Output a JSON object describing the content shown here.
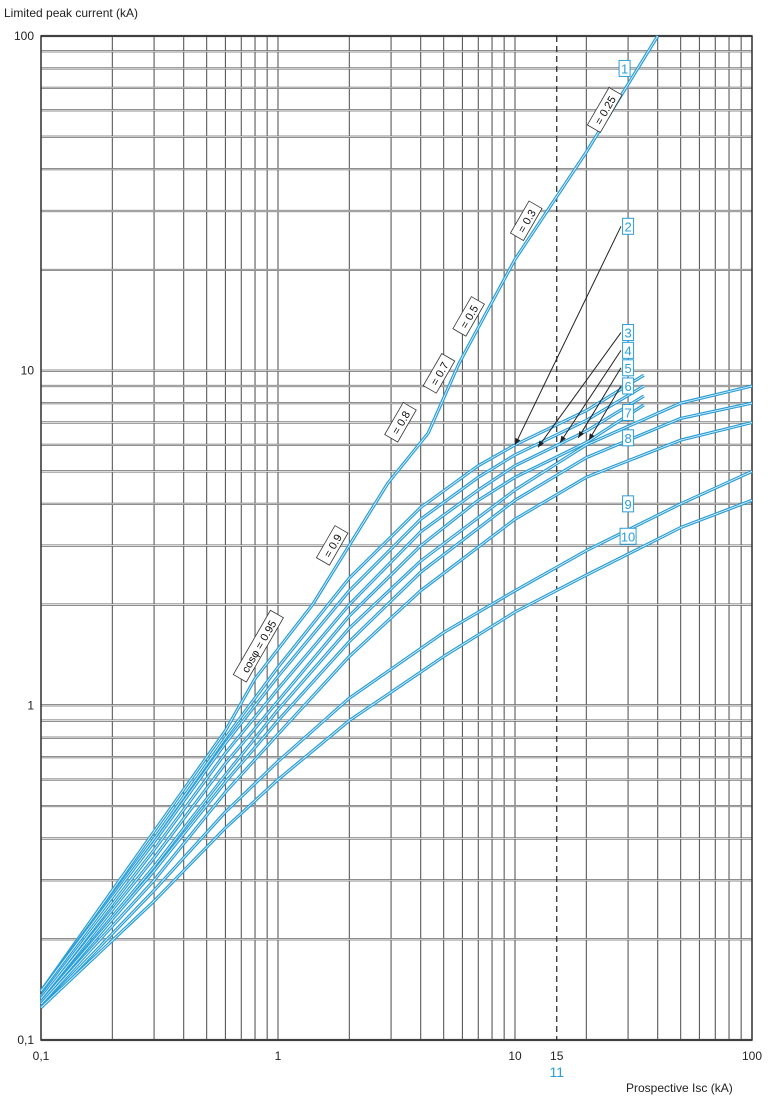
{
  "chart_data": {
    "type": "line",
    "xlabel": "Prospective Isc (kA)",
    "ylabel": "Limited peak current (kA)",
    "xscale": "log",
    "yscale": "log",
    "xlim": [
      0.1,
      100
    ],
    "ylim": [
      0.1,
      100
    ],
    "grid": true,
    "x_ticks": [
      {
        "value": 0.1,
        "label": "0,1"
      },
      {
        "value": 1,
        "label": "1"
      },
      {
        "value": 10,
        "label": "10"
      },
      {
        "value": 15,
        "label": "15"
      },
      {
        "value": 100,
        "label": "100"
      }
    ],
    "y_ticks": [
      {
        "value": 0.1,
        "label": "0,1"
      },
      {
        "value": 1,
        "label": "1"
      },
      {
        "value": 10,
        "label": "10"
      },
      {
        "value": 100,
        "label": "100"
      }
    ],
    "reference_line": {
      "x": 15,
      "label": "11",
      "style": "dashed"
    },
    "series": [
      {
        "name": "1",
        "x": [
          0.1,
          0.3,
          0.6,
          0.8,
          1.4,
          2.9,
          4.3,
          5.8,
          10,
          20,
          40
        ],
        "y": [
          0.14,
          0.42,
          0.84,
          1.2,
          2.0,
          4.6,
          6.5,
          10.5,
          21.5,
          45,
          100
        ]
      },
      {
        "name": "2",
        "x": [
          0.1,
          0.3,
          0.6,
          1,
          2,
          4,
          7,
          10,
          20,
          35
        ],
        "y": [
          0.14,
          0.4,
          0.8,
          1.3,
          2.4,
          3.9,
          5.2,
          6.0,
          7.6,
          9.7
        ]
      },
      {
        "name": "3",
        "x": [
          0.1,
          0.3,
          0.6,
          1,
          2,
          4,
          7,
          10,
          20,
          35
        ],
        "y": [
          0.14,
          0.39,
          0.77,
          1.22,
          2.2,
          3.6,
          4.8,
          5.6,
          7.1,
          9.0
        ]
      },
      {
        "name": "4",
        "x": [
          0.1,
          0.3,
          0.6,
          1,
          2,
          4,
          7,
          10,
          20,
          35
        ],
        "y": [
          0.135,
          0.37,
          0.72,
          1.12,
          2.0,
          3.3,
          4.4,
          5.2,
          6.6,
          8.4
        ]
      },
      {
        "name": "5",
        "x": [
          0.1,
          0.3,
          0.6,
          1,
          2,
          4,
          7,
          10,
          20,
          35
        ],
        "y": [
          0.133,
          0.35,
          0.67,
          1.03,
          1.85,
          3.0,
          4.1,
          4.8,
          6.1,
          7.9
        ]
      },
      {
        "name": "6",
        "x": [
          0.1,
          0.3,
          0.6,
          1,
          2,
          4,
          10,
          20,
          50,
          100
        ],
        "y": [
          0.13,
          0.33,
          0.62,
          0.97,
          1.7,
          2.7,
          4.4,
          6.0,
          8.0,
          9.0
        ]
      },
      {
        "name": "7",
        "x": [
          0.1,
          0.3,
          0.6,
          1,
          2,
          4,
          10,
          20,
          50,
          100
        ],
        "y": [
          0.13,
          0.32,
          0.59,
          0.9,
          1.55,
          2.5,
          4.1,
          5.5,
          7.2,
          8.0
        ]
      },
      {
        "name": "8",
        "x": [
          0.1,
          0.3,
          0.6,
          1,
          2,
          4,
          10,
          20,
          50,
          100
        ],
        "y": [
          0.128,
          0.3,
          0.55,
          0.82,
          1.4,
          2.2,
          3.6,
          4.8,
          6.2,
          7.0
        ]
      },
      {
        "name": "9",
        "x": [
          0.1,
          0.3,
          0.6,
          1,
          2,
          5,
          10,
          20,
          50,
          100
        ],
        "y": [
          0.125,
          0.28,
          0.48,
          0.68,
          1.05,
          1.65,
          2.2,
          2.9,
          4.0,
          5.0
        ]
      },
      {
        "name": "10",
        "x": [
          0.1,
          0.3,
          0.6,
          1,
          2,
          5,
          10,
          20,
          50,
          100
        ],
        "y": [
          0.125,
          0.26,
          0.43,
          0.6,
          0.9,
          1.4,
          1.9,
          2.45,
          3.4,
          4.1
        ]
      }
    ],
    "curve_labels": [
      {
        "text": "1",
        "x": 29,
        "y": 80
      },
      {
        "text": "2",
        "x": 30,
        "y": 27
      },
      {
        "text": "3",
        "x": 30,
        "y": 13
      },
      {
        "text": "4",
        "x": 30,
        "y": 11.5
      },
      {
        "text": "5",
        "x": 30,
        "y": 10.2
      },
      {
        "text": "6",
        "x": 30,
        "y": 9.0
      },
      {
        "text": "7",
        "x": 30,
        "y": 7.5
      },
      {
        "text": "8",
        "x": 30,
        "y": 6.3
      },
      {
        "text": "9",
        "x": 30,
        "y": 4.0
      },
      {
        "text": "10",
        "x": 30,
        "y": 3.2
      }
    ],
    "arrows": [
      {
        "from": [
          28,
          27
        ],
        "to": [
          10,
          6.0
        ]
      },
      {
        "from": [
          28,
          13
        ],
        "to": [
          12.5,
          5.9
        ]
      },
      {
        "from": [
          28,
          11.5
        ],
        "to": [
          15.5,
          6.1
        ]
      },
      {
        "from": [
          28,
          10.2
        ],
        "to": [
          18.5,
          6.3
        ]
      },
      {
        "from": [
          28,
          9.0
        ],
        "to": [
          20.5,
          6.2
        ]
      }
    ],
    "annotations": [
      {
        "text": "cosφ = 0.95",
        "x": 0.83,
        "y": 1.5
      },
      {
        "text": "= 0.9",
        "x": 1.7,
        "y": 3.0
      },
      {
        "text": "= 0.8",
        "x": 3.3,
        "y": 7.0
      },
      {
        "text": "= 0.7",
        "x": 4.8,
        "y": 9.8
      },
      {
        "text": "= 0.5",
        "x": 6.4,
        "y": 14.5
      },
      {
        "text": "= 0.3",
        "x": 11.2,
        "y": 28.0
      },
      {
        "text": "= 0.25",
        "x": 24,
        "y": 60.0
      }
    ]
  }
}
